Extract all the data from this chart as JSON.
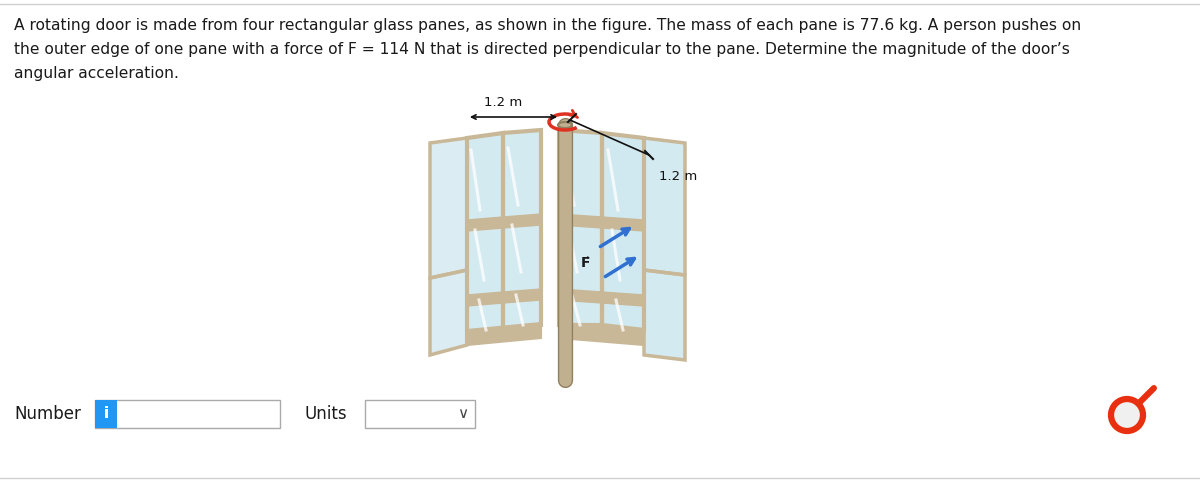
{
  "bg_color": "#ffffff",
  "border_color": "#d0d0d0",
  "problem_text_line1": "A rotating door is made from four rectangular glass panes, as shown in the figure. The mass of each pane is 77.6 kg. A person pushes on",
  "problem_text_line2": "the outer edge of one pane with a force of F = 114 N that is directed perpendicular to the pane. Determine the magnitude of the door’s",
  "problem_text_line3": "angular acceleration.",
  "text_color": "#1a1a1a",
  "text_fontsize": 11.2,
  "label_12m_left": "1.2 m",
  "label_12m_right": "1.2 m",
  "force_label": "F⃗",
  "number_label": "Number",
  "units_label": "Units",
  "info_button_color": "#2196F3",
  "info_button_text": "i",
  "frame_color": "#c8b898",
  "frame_dark": "#a89878",
  "glass_color": "#b8dce8",
  "glass_alpha": 0.6,
  "pole_color": "#c0b090",
  "pole_dark": "#908060",
  "rot_arrow_color": "#e03020",
  "force_arrow_color": "#3070d0",
  "dim_line_color": "#111111",
  "red_symbol_color": "#e83010"
}
